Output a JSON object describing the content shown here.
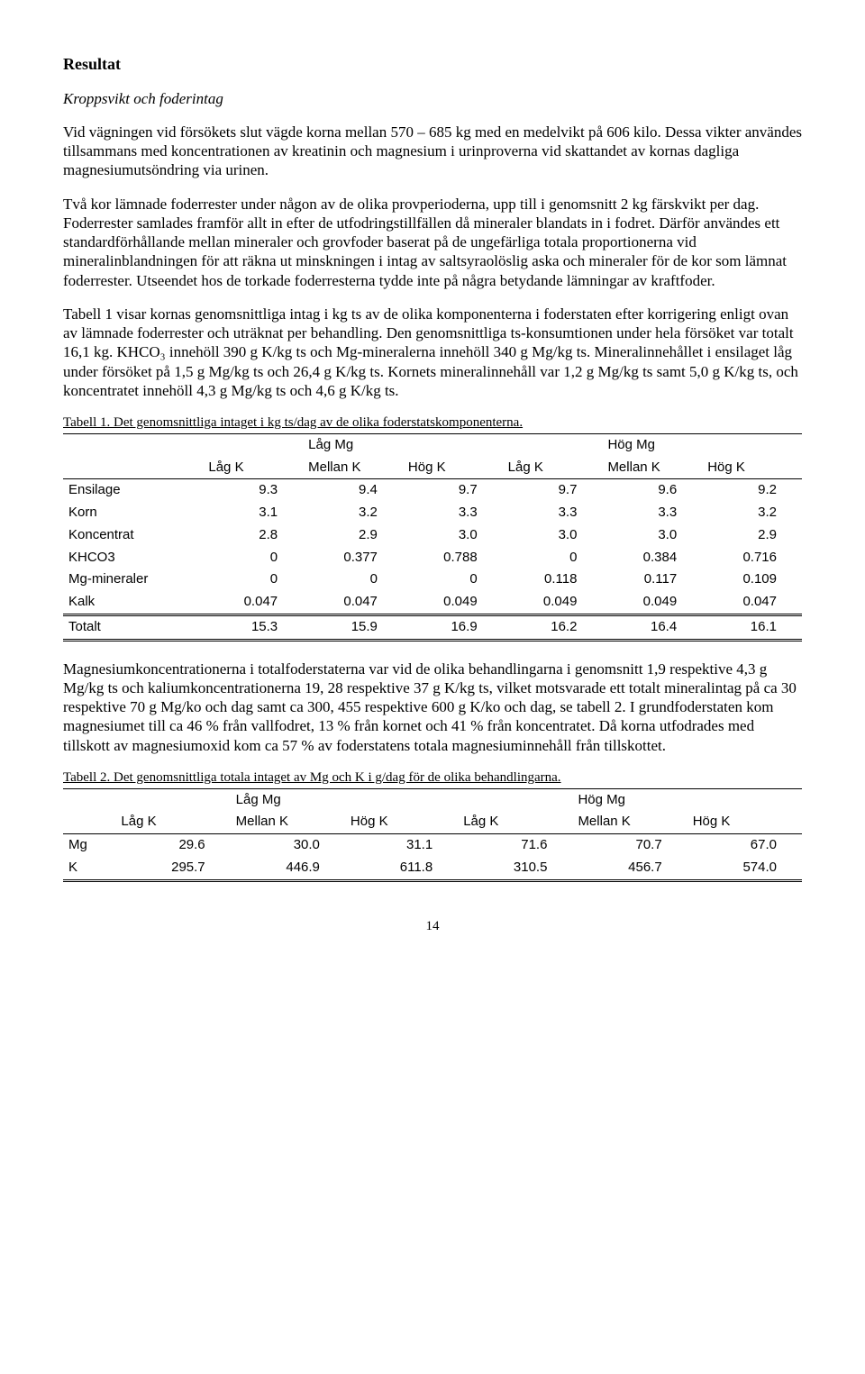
{
  "heading": "Resultat",
  "subheading": "Kroppsvikt och foderintag",
  "paragraphs": {
    "p1": "Vid vägningen vid försökets slut vägde korna mellan 570 – 685 kg med en medelvikt på 606 kilo. Dessa vikter användes tillsammans med koncentrationen av kreatinin och magnesium i urinproverna vid skattandet av kornas dagliga magnesiumutsöndring via urinen.",
    "p2": "Två kor lämnade foderrester under någon av de olika provperioderna, upp till i genomsnitt 2 kg färskvikt per dag. Foderrester samlades framför allt in efter de utfodringstillfällen då mineraler blandats in i fodret. Därför användes ett standardförhållande mellan mineraler och grovfoder baserat på de ungefärliga totala proportionerna vid mineralinblandningen för att räkna ut minskningen i intag av saltsyraolöslig aska och mineraler för de kor som lämnat foderrester. Utseendet hos de torkade foderresterna tydde inte på några betydande lämningar av kraftfoder.",
    "p3": "Tabell 1 visar kornas genomsnittliga intag i kg ts av de olika komponenterna i foderstaten efter korrigering enligt ovan av lämnade foderrester och uträknat per behandling. Den genomsnittliga ts-konsumtionen under hela försöket var totalt 16,1 kg. KHCO₃ innehöll 390 g K/kg ts och Mg-mineralerna innehöll 340 g Mg/kg ts. Mineralinnehållet i ensilaget låg under försöket på 1,5 g Mg/kg ts och 26,4 g K/kg ts. Kornets mineralinnehåll var 1,2 g Mg/kg ts samt 5,0 g K/kg ts, och koncentratet innehöll 4,3 g Mg/kg ts och 4,6 g K/kg ts.",
    "p4": "Magnesiumkoncentrationerna i totalfoderstaterna var vid de olika behandlingarna i genomsnitt 1,9 respektive 4,3 g Mg/kg ts och kaliumkoncentrationerna 19, 28 respektive 37 g K/kg ts, vilket motsvarade ett totalt mineralintag på ca 30 respektive 70 g Mg/ko och dag samt ca 300, 455 respektive 600 g K/ko och dag, se tabell 2. I grundfoderstaten kom magnesiumet till ca 46 % från vallfodret, 13 % från kornet och 41 % från koncentratet. Då korna utfodrades med tillskott av magnesiumoxid kom ca 57 % av foderstatens totala magnesiuminnehåll från tillskottet."
  },
  "table1": {
    "caption": "Tabell 1. Det genomsnittliga intaget i kg ts/dag av de olika foderstatskomponenterna.",
    "group_headers": {
      "g1": "Låg Mg",
      "g2": "Hög Mg"
    },
    "sub_headers": [
      "Låg K",
      "Mellan K",
      "Hög K",
      "Låg K",
      "Mellan K",
      "Hög K"
    ],
    "rows": [
      {
        "label": "Ensilage",
        "v": [
          "9.3",
          "9.4",
          "9.7",
          "9.7",
          "9.6",
          "9.2"
        ]
      },
      {
        "label": "Korn",
        "v": [
          "3.1",
          "3.2",
          "3.3",
          "3.3",
          "3.3",
          "3.2"
        ]
      },
      {
        "label": "Koncentrat",
        "v": [
          "2.8",
          "2.9",
          "3.0",
          "3.0",
          "3.0",
          "2.9"
        ]
      },
      {
        "label": "KHCO3",
        "v": [
          "0",
          "0.377",
          "0.788",
          "0",
          "0.384",
          "0.716"
        ]
      },
      {
        "label": "Mg-mineraler",
        "v": [
          "0",
          "0",
          "0",
          "0.118",
          "0.117",
          "0.109"
        ]
      },
      {
        "label": "Kalk",
        "v": [
          "0.047",
          "0.047",
          "0.049",
          "0.049",
          "0.049",
          "0.047"
        ]
      },
      {
        "label": "Totalt",
        "v": [
          "15.3",
          "15.9",
          "16.9",
          "16.2",
          "16.4",
          "16.1"
        ]
      }
    ]
  },
  "table2": {
    "caption": "Tabell 2. Det genomsnittliga totala intaget av Mg och K i g/dag för de olika behandlingarna.",
    "group_headers": {
      "g1": "Låg Mg",
      "g2": "Hög Mg"
    },
    "sub_headers": [
      "Låg K",
      "Mellan K",
      "Hög K",
      "Låg K",
      "Mellan K",
      "Hög K"
    ],
    "rows": [
      {
        "label": "Mg",
        "v": [
          "29.6",
          "30.0",
          "31.1",
          "71.6",
          "70.7",
          "67.0"
        ]
      },
      {
        "label": "K",
        "v": [
          "295.7",
          "446.9",
          "611.8",
          "310.5",
          "456.7",
          "574.0"
        ]
      }
    ]
  },
  "page_number": "14"
}
